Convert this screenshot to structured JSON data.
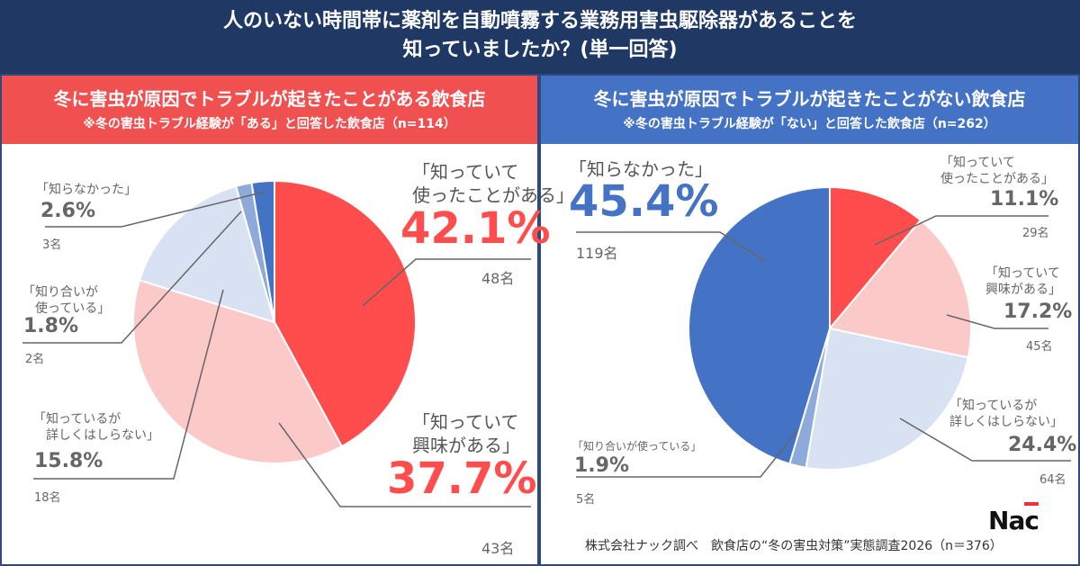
{
  "title_line1": "人のいない時間帯に薬剤を自動噴霧する業務用害虫駆除器があることを",
  "title_line2": "知っていましたか？(単一回答)",
  "footer": "株式会社ナック調べ　飲食店の“冬の害虫対策”実態調査2026（n＝376）",
  "logo": "NAC",
  "colors": {
    "red": "#ff4d4d",
    "pink": "#fcc9c9",
    "lightblue": "#d9e2f3",
    "midblue": "#8eaadb",
    "darkblue": "#4472c4"
  },
  "chart_data": [
    {
      "type": "pie",
      "title": "冬に害虫が原因でトラブルが起きたことがある飲食店",
      "subtitle": "※冬の害虫トラブル経験が「ある」と回答した飲食店（n=114）",
      "slices": [
        {
          "label": "「知っていて\n使ったことがある」",
          "value": 42.1,
          "pct": "42.1%",
          "count": "48名",
          "color": "#ff4d4d"
        },
        {
          "label": "「知っていて\n興味がある」",
          "value": 37.7,
          "pct": "37.7%",
          "count": "43名",
          "color": "#fcc9c9"
        },
        {
          "label": "「知っているが\n　詳しくはしらない」",
          "value": 15.8,
          "pct": "15.8%",
          "count": "18名",
          "color": "#d9e2f3"
        },
        {
          "label": "「知り合いが\n　使っている」",
          "value": 1.8,
          "pct": "1.8%",
          "count": "2名",
          "color": "#8eaadb"
        },
        {
          "label": "「知らなかった」",
          "value": 2.6,
          "pct": "2.6%",
          "count": "3名",
          "color": "#4472c4"
        }
      ]
    },
    {
      "type": "pie",
      "title": "冬に害虫が原因でトラブルが起きたことがない飲食店",
      "subtitle": "※冬の害虫トラブル経験が「ない」と回答した飲食店（n=262）",
      "slices": [
        {
          "label": "「知っていて\n使ったことがある」",
          "value": 11.1,
          "pct": "11.1%",
          "count": "29名",
          "color": "#ff4d4d"
        },
        {
          "label": "「知っていて\n興味がある」",
          "value": 17.2,
          "pct": "17.2%",
          "count": "45名",
          "color": "#fcc9c9"
        },
        {
          "label": "「知っているが\n詳しくはしらない」",
          "value": 24.4,
          "pct": "24.4%",
          "count": "64名",
          "color": "#d9e2f3"
        },
        {
          "label": "「知り合いが使っている」",
          "value": 1.9,
          "pct": "1.9%",
          "count": "5名",
          "color": "#8eaadb"
        },
        {
          "label": "「知らなかった」",
          "value": 45.4,
          "pct": "45.4%",
          "count": "119名",
          "color": "#4472c4"
        }
      ]
    }
  ]
}
